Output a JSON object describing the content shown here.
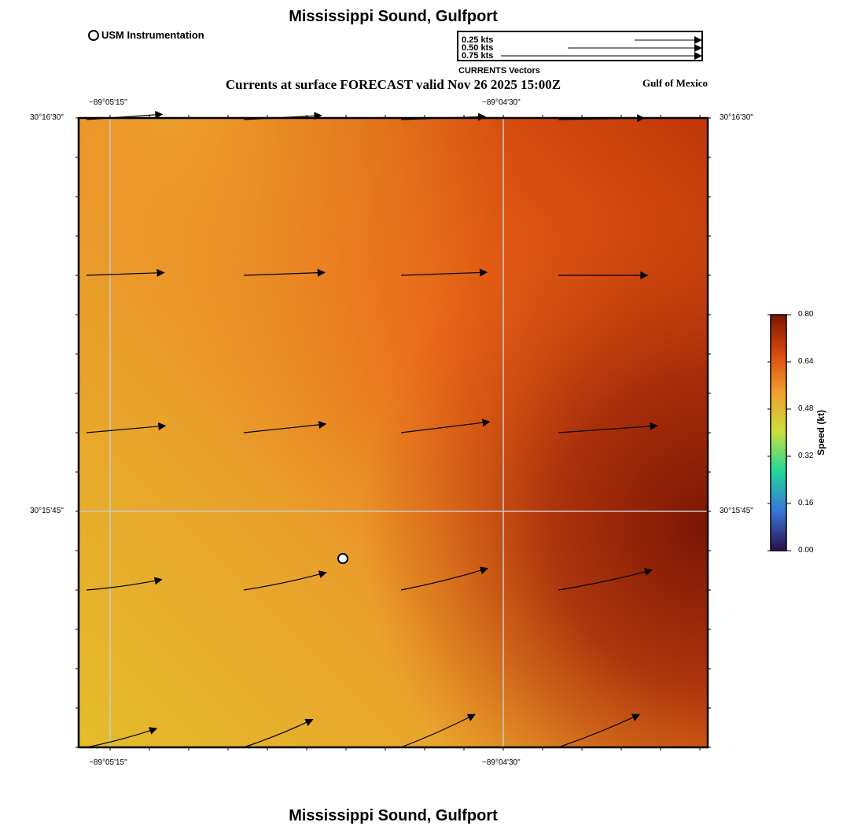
{
  "title": "Mississippi Sound, Gulfport",
  "subtitle": "Currents at surface FORECAST valid Nov 26 2025 15:00Z",
  "region_label": "Gulf of Mexico",
  "station_legend": "USM Instrumentation",
  "vector_legend": {
    "title": "CURRENTS Vectors",
    "entries": [
      {
        "label": "0.25 kts",
        "speed": 0.25
      },
      {
        "label": "0.50 kts",
        "speed": 0.5
      },
      {
        "label": "0.75 kts",
        "speed": 0.75
      }
    ]
  },
  "map_extent": {
    "lon_labels": [
      "−89°05'15\"",
      "−89°04'30\""
    ],
    "lat_labels": [
      "30°16'30\"",
      "30°15'45\""
    ]
  },
  "colorbar": {
    "label": "Speed (kt)",
    "ticks": [
      "0.00",
      "0.16",
      "0.32",
      "0.48",
      "0.64",
      "0.80"
    ],
    "min": 0,
    "max": 0.8,
    "colors": [
      "#2a0f4a",
      "#3a76d8",
      "#1fd69c",
      "#c8e040",
      "#f0a030",
      "#d94a0e",
      "#7a1505"
    ]
  },
  "station": {
    "name": "USM Instrumentation",
    "lon_frac": 0.42,
    "lat_frac": 0.3
  },
  "current_vectors": [
    {
      "row": 0,
      "col": 0,
      "speed": 0.46,
      "dir_deg": 86
    },
    {
      "row": 0,
      "col": 1,
      "speed": 0.47,
      "dir_deg": 87
    },
    {
      "row": 0,
      "col": 2,
      "speed": 0.51,
      "dir_deg": 88
    },
    {
      "row": 0,
      "col": 3,
      "speed": 0.52,
      "dir_deg": 89
    },
    {
      "row": 1,
      "col": 0,
      "speed": 0.47,
      "dir_deg": 88
    },
    {
      "row": 1,
      "col": 1,
      "speed": 0.49,
      "dir_deg": 88
    },
    {
      "row": 1,
      "col": 2,
      "speed": 0.52,
      "dir_deg": 88
    },
    {
      "row": 1,
      "col": 3,
      "speed": 0.54,
      "dir_deg": 90
    },
    {
      "row": 2,
      "col": 0,
      "speed": 0.48,
      "dir_deg": 85
    },
    {
      "row": 2,
      "col": 1,
      "speed": 0.5,
      "dir_deg": 84
    },
    {
      "row": 2,
      "col": 2,
      "speed": 0.54,
      "dir_deg": 83
    },
    {
      "row": 2,
      "col": 3,
      "speed": 0.6,
      "dir_deg": 86
    },
    {
      "row": 3,
      "col": 0,
      "speed": 0.46,
      "dir_deg": 82
    },
    {
      "row": 3,
      "col": 1,
      "speed": 0.51,
      "dir_deg": 78
    },
    {
      "row": 3,
      "col": 2,
      "speed": 0.54,
      "dir_deg": 76
    },
    {
      "row": 3,
      "col": 3,
      "speed": 0.58,
      "dir_deg": 78
    },
    {
      "row": 4,
      "col": 0,
      "speed": 0.44,
      "dir_deg": 75
    },
    {
      "row": 4,
      "col": 1,
      "speed": 0.45,
      "dir_deg": 68
    },
    {
      "row": 4,
      "col": 2,
      "speed": 0.49,
      "dir_deg": 66
    },
    {
      "row": 4,
      "col": 3,
      "speed": 0.53,
      "dir_deg": 68
    }
  ]
}
